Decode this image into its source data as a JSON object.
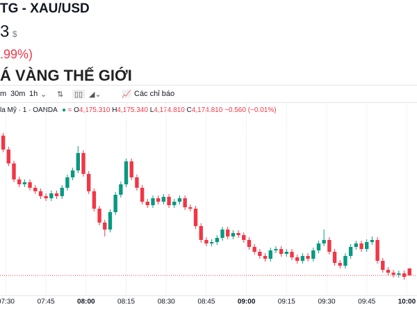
{
  "header": {
    "symbol": "TG - XAU/USD",
    "price": "3",
    "currency": "$",
    "change": ".99%)",
    "section_title": "Á VÀNG THẾ GIỚI"
  },
  "toolbar": {
    "interval_1": "m",
    "interval_2": "30m",
    "interval_3": "1h",
    "indicators": "Các chỉ báo"
  },
  "legend": {
    "source": "la Mỹ · 1 · OANDA",
    "o_label": "O",
    "o": "4,175.310",
    "h_label": "H",
    "h": "4,175.340",
    "l_label": "L",
    "l": "4,174.810",
    "c_label": "C",
    "c": "4,174.810",
    "change": "−0.560 (−0.01%)"
  },
  "chart_data": {
    "type": "candlestick",
    "up_color": "#089981",
    "down_color": "#f23645",
    "ylim": [
      4173.36,
      4186.36
    ],
    "xlim": [
      -0.6,
      77.4
    ],
    "xticks": [
      {
        "value": 0.5,
        "label": "07:30"
      },
      {
        "value": 8,
        "label": "07:45"
      },
      {
        "value": 15.5,
        "label": "08:00"
      },
      {
        "value": 23,
        "label": "08:15"
      },
      {
        "value": 30.5,
        "label": "08:30"
      },
      {
        "value": 38,
        "label": "08:45"
      },
      {
        "value": 45.5,
        "label": "09:00"
      },
      {
        "value": 53,
        "label": "09:15"
      },
      {
        "value": 60.5,
        "label": "09:30"
      },
      {
        "value": 68,
        "label": "09:45"
      },
      {
        "value": 75.5,
        "label": "10:00"
      }
    ],
    "open": [
      4184.86,
      4183.86,
      4182.86,
      4181.71,
      4181.36,
      4181.51,
      4181.11,
      4180.86,
      4180.51,
      4180.36,
      4180.71,
      4180.51,
      4181.11,
      4181.86,
      4182.36,
      4183.61,
      4182.11,
      4180.86,
      4179.61,
      4178.61,
      4178.11,
      4179.36,
      4180.61,
      4181.36,
      4183.01,
      4181.86,
      4181.11,
      4180.11,
      4179.86,
      4180.36,
      4180.11,
      4180.46,
      4179.86,
      4180.11,
      4180.36,
      4179.71,
      4179.61,
      4178.36,
      4177.36,
      4177.11,
      4177.21,
      4177.51,
      4178.11,
      4177.61,
      4177.86,
      4177.71,
      4177.36,
      4176.86,
      4176.51,
      4176.21,
      4176.01,
      4176.61,
      4176.71,
      4176.36,
      4176.51,
      4176.11,
      4175.86,
      4176.21,
      4176.01,
      4176.61,
      4177.11,
      4177.36,
      4176.51,
      4175.71,
      4175.51,
      4176.21,
      4176.86,
      4177.11,
      4176.71,
      4177.21,
      4177.36,
      4175.86,
      4175.21,
      4175.01,
      4174.86,
      4174.96,
      4175.31
    ],
    "high": [
      4185.06,
      4184.06,
      4183.06,
      4181.91,
      4181.71,
      4181.71,
      4181.31,
      4181.06,
      4180.71,
      4180.91,
      4180.91,
      4181.31,
      4182.06,
      4182.56,
      4184.11,
      4183.81,
      4182.31,
      4181.06,
      4179.81,
      4178.81,
      4179.56,
      4180.81,
      4181.56,
      4183.21,
      4183.21,
      4182.06,
      4181.31,
      4180.31,
      4180.56,
      4180.56,
      4180.66,
      4180.66,
      4180.31,
      4180.56,
      4180.56,
      4179.91,
      4179.81,
      4178.56,
      4177.56,
      4177.41,
      4177.71,
      4178.31,
      4178.31,
      4178.06,
      4178.06,
      4177.91,
      4177.56,
      4177.06,
      4176.71,
      4176.41,
      4176.81,
      4176.91,
      4176.91,
      4176.71,
      4176.71,
      4176.31,
      4176.41,
      4176.41,
      4176.81,
      4177.31,
      4178.11,
      4177.56,
      4176.71,
      4175.91,
      4176.41,
      4177.06,
      4177.31,
      4177.31,
      4177.41,
      4177.61,
      4177.56,
      4176.06,
      4175.41,
      4175.21,
      4175.16,
      4175.16,
      4175.34
    ],
    "low": [
      4183.66,
      4182.66,
      4181.51,
      4181.16,
      4181.16,
      4180.91,
      4180.66,
      4180.31,
      4180.16,
      4180.16,
      4180.31,
      4180.31,
      4180.91,
      4181.66,
      4182.16,
      4181.91,
      4180.66,
      4179.41,
      4178.41,
      4177.61,
      4177.91,
      4179.16,
      4180.41,
      4181.16,
      4181.66,
      4180.91,
      4179.91,
      4179.66,
      4179.66,
      4179.91,
      4179.91,
      4179.66,
      4179.66,
      4179.91,
      4179.51,
      4179.41,
      4178.16,
      4177.16,
      4176.91,
      4176.91,
      4177.01,
      4177.31,
      4177.41,
      4177.41,
      4177.51,
      4177.16,
      4176.66,
      4176.31,
      4176.01,
      4175.81,
      4175.81,
      4176.41,
      4176.16,
      4176.16,
      4175.91,
      4175.66,
      4175.66,
      4175.81,
      4175.81,
      4176.41,
      4176.91,
      4176.31,
      4175.51,
      4175.31,
      4175.31,
      4176.01,
      4176.66,
      4176.51,
      4176.51,
      4177.01,
      4175.66,
      4175.01,
      4174.81,
      4174.66,
      4174.66,
      4174.51,
      4174.81
    ],
    "close": [
      4183.86,
      4182.86,
      4181.71,
      4181.36,
      4181.51,
      4181.11,
      4180.86,
      4180.51,
      4180.36,
      4180.71,
      4180.51,
      4181.11,
      4181.86,
      4182.36,
      4183.61,
      4182.11,
      4180.86,
      4179.61,
      4178.61,
      4178.11,
      4179.36,
      4180.61,
      4181.36,
      4183.01,
      4181.86,
      4181.11,
      4180.11,
      4179.86,
      4180.36,
      4180.11,
      4180.46,
      4179.86,
      4180.11,
      4180.36,
      4179.71,
      4179.61,
      4178.36,
      4177.36,
      4177.11,
      4177.21,
      4177.51,
      4178.11,
      4177.61,
      4177.86,
      4177.71,
      4177.36,
      4176.86,
      4176.51,
      4176.21,
      4176.01,
      4176.61,
      4176.71,
      4176.36,
      4176.51,
      4176.11,
      4175.86,
      4176.21,
      4176.01,
      4176.61,
      4177.11,
      4177.36,
      4176.51,
      4175.71,
      4175.51,
      4176.21,
      4176.86,
      4177.11,
      4176.71,
      4177.21,
      4177.36,
      4175.86,
      4175.21,
      4175.01,
      4174.86,
      4174.96,
      4174.71,
      4174.81
    ]
  }
}
